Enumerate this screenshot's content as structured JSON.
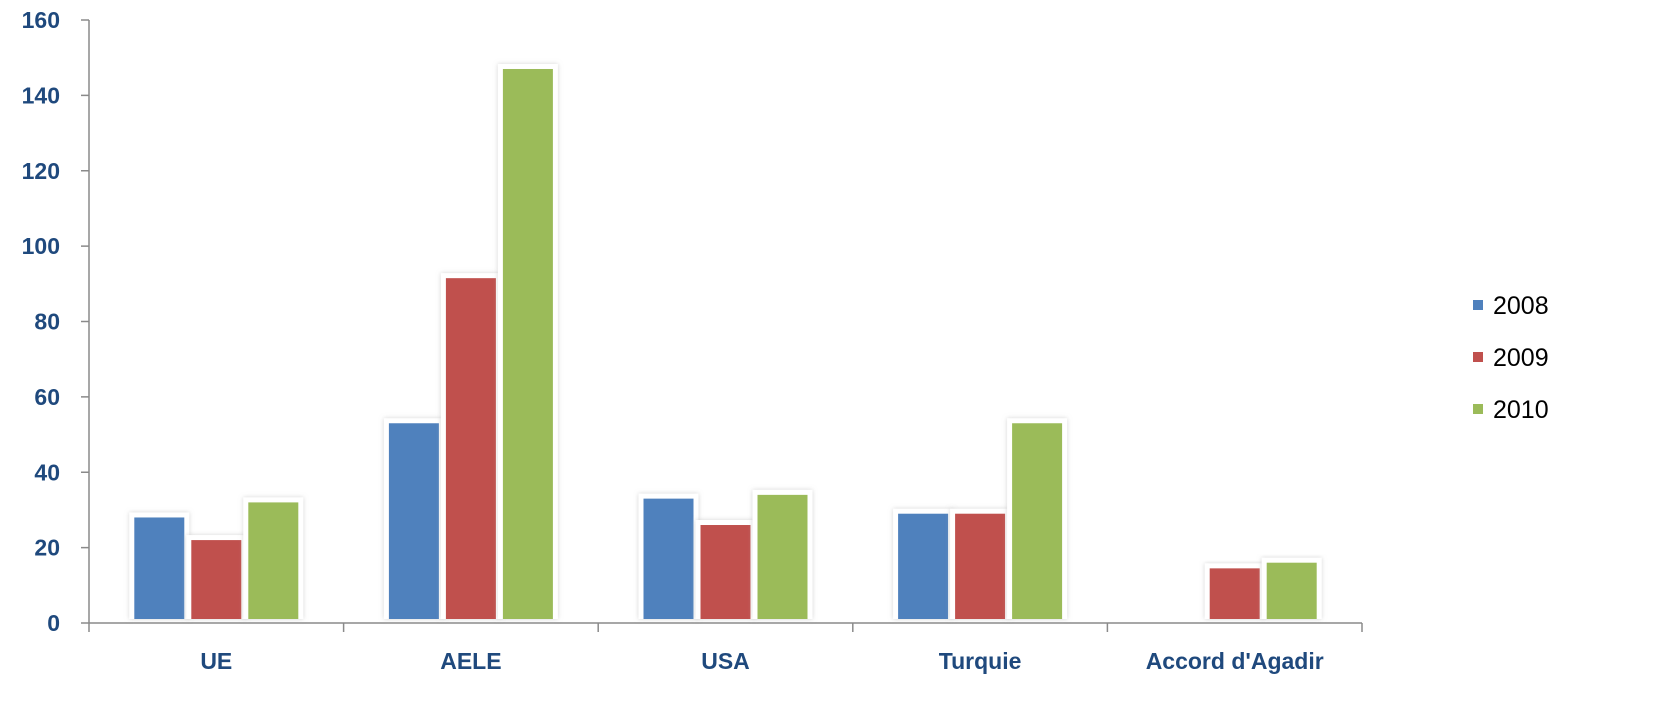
{
  "chart_data": {
    "type": "bar",
    "title": "",
    "xlabel": "",
    "ylabel": "",
    "categories": [
      "UE",
      "AELE",
      "USA",
      "Turquie",
      "Accord d'Agadir"
    ],
    "series": [
      {
        "name": "2008",
        "color": "#4f81bd",
        "values": [
          28,
          53,
          33,
          29,
          null
        ]
      },
      {
        "name": "2009",
        "color": "#c0504d",
        "values": [
          22,
          91.5,
          26,
          29,
          14.5
        ]
      },
      {
        "name": "2010",
        "color": "#9bbb59",
        "values": [
          32,
          147,
          34,
          53,
          16
        ]
      }
    ],
    "ylim": [
      0,
      160
    ],
    "yticks": [
      "0",
      "20",
      "40",
      "60",
      "80",
      "100",
      "120",
      "140",
      "160"
    ],
    "grid": false,
    "legend": {
      "position": "right",
      "items": [
        "2008",
        "2009",
        "2010"
      ]
    }
  }
}
